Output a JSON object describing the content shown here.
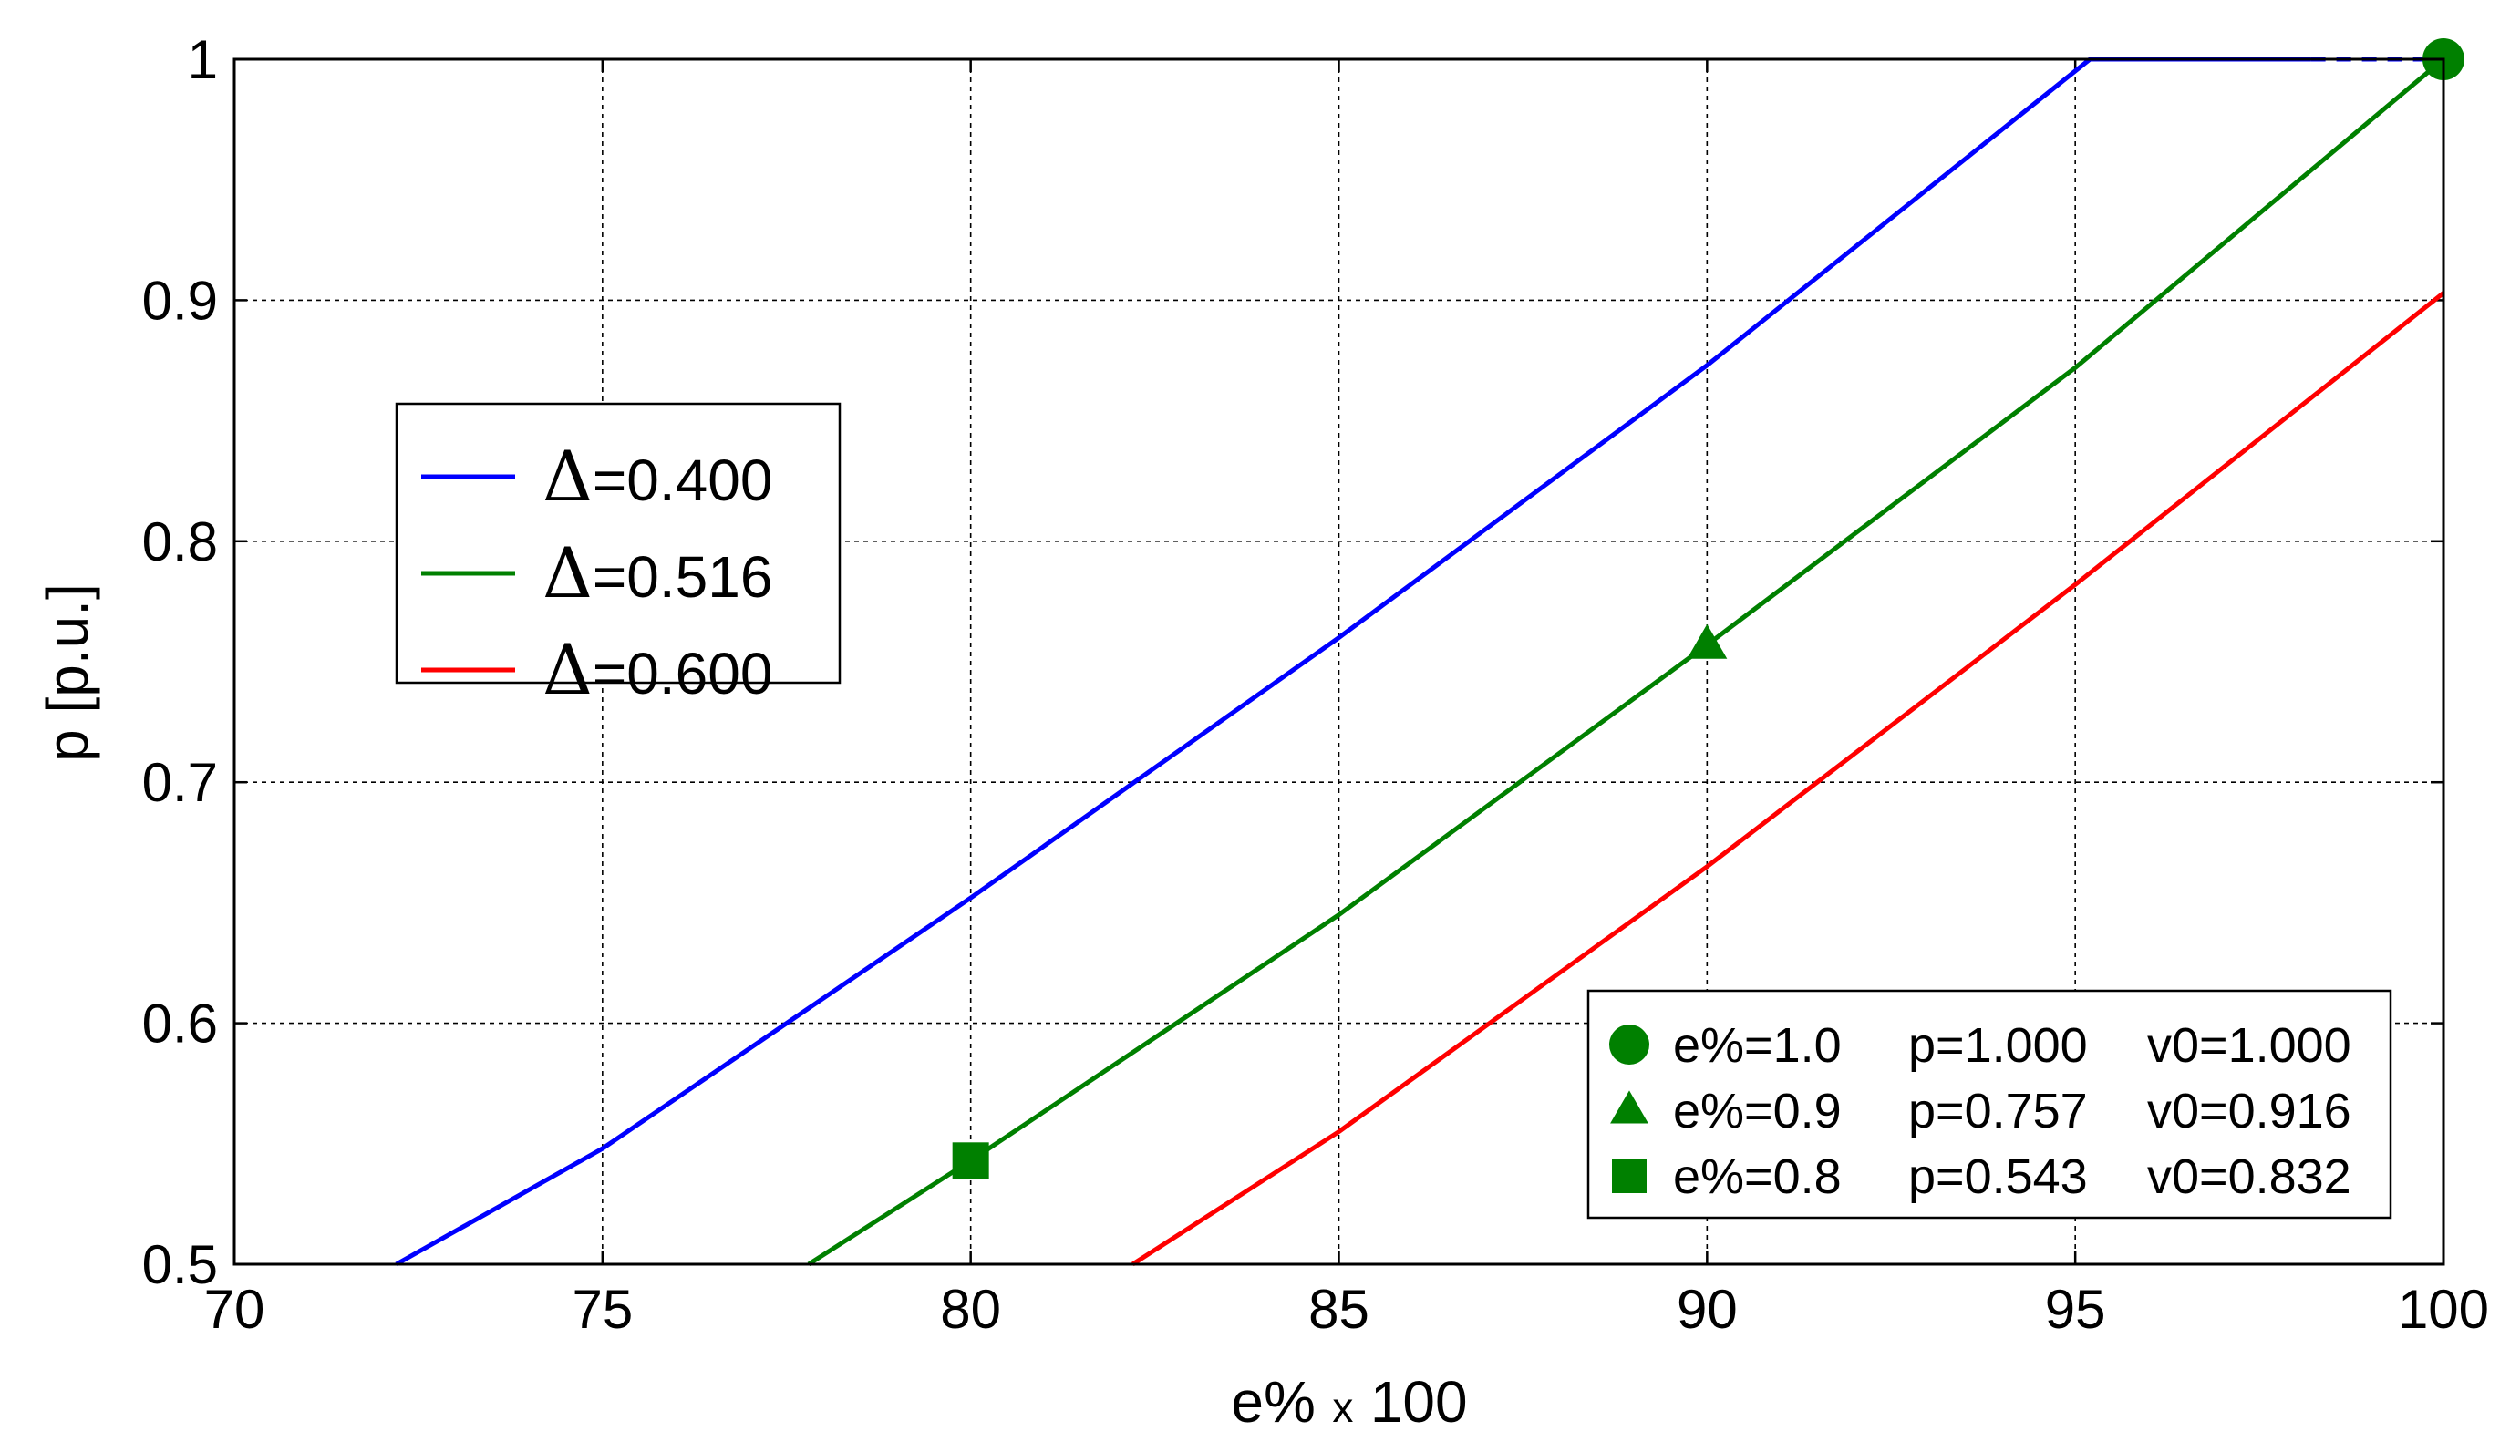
{
  "chart_data": {
    "type": "line",
    "xlabel_main": "e%",
    "xlabel_mult": "x",
    "xlabel_scale": "100",
    "ylabel": "p [p.u.]",
    "xlim": [
      70,
      100
    ],
    "ylim": [
      0.5,
      1.0
    ],
    "xticks": [
      "70",
      "75",
      "80",
      "85",
      "90",
      "95",
      "100"
    ],
    "yticks": [
      "0.5",
      "0.6",
      "0.7",
      "0.8",
      "0.9",
      "1"
    ],
    "grid": true,
    "series": [
      {
        "name_symbol": "Δ",
        "name_value": "=0.400",
        "color": "#0000ff",
        "x": [
          72.2,
          75.0,
          80.0,
          85.0,
          90.0,
          95.2,
          98.2
        ],
        "y": [
          0.5,
          0.548,
          0.652,
          0.76,
          0.873,
          1.0,
          1.0
        ],
        "dashed_extension": {
          "x": [
            98.2,
            100.0
          ],
          "y": [
            1.0,
            1.0
          ]
        }
      },
      {
        "name_symbol": "Δ",
        "name_value": "=0.516",
        "color": "#008000",
        "x": [
          77.8,
          80.0,
          85.0,
          90.0,
          95.0,
          100.0
        ],
        "y": [
          0.5,
          0.543,
          0.645,
          0.757,
          0.872,
          1.0
        ]
      },
      {
        "name_symbol": "Δ",
        "name_value": "=0.600",
        "color": "#ff0000",
        "x": [
          82.2,
          85.0,
          90.0,
          95.0,
          100.0
        ],
        "y": [
          0.5,
          0.555,
          0.665,
          0.782,
          0.903
        ]
      }
    ],
    "legend_position": "upper-left",
    "markers": [
      {
        "shape": "circle",
        "x": 100,
        "y": 1.0,
        "color": "#008000",
        "e": "e%=1.0",
        "p": "p=1.000",
        "v0": "v0=1.000"
      },
      {
        "shape": "triangle",
        "x": 90,
        "y": 0.757,
        "color": "#008000",
        "e": "e%=0.9",
        "p": "p=0.757",
        "v0": "v0=0.916"
      },
      {
        "shape": "square",
        "x": 80,
        "y": 0.543,
        "color": "#008000",
        "e": "e%=0.8",
        "p": "p=0.543",
        "v0": "v0=0.832"
      }
    ],
    "marker_legend_position": "lower-right"
  }
}
